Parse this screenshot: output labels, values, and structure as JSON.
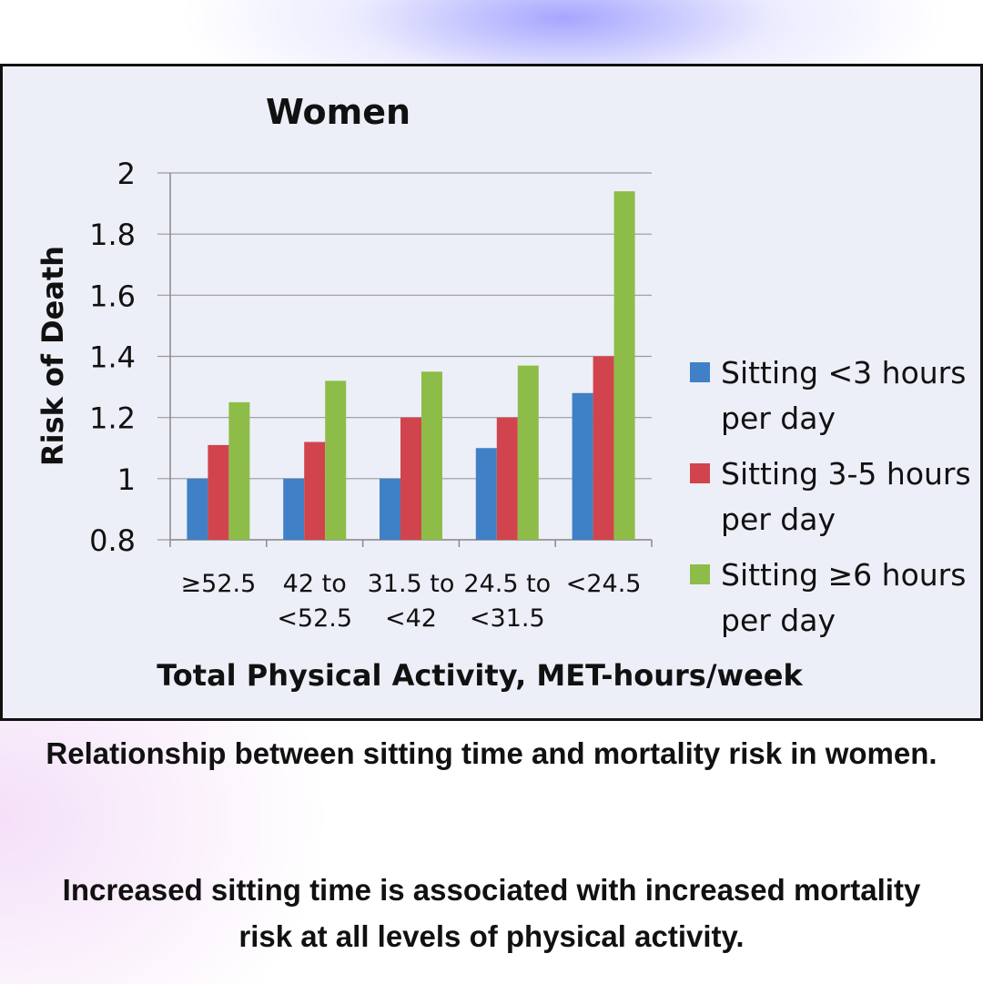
{
  "chart_data": {
    "type": "bar",
    "title": "Women",
    "xlabel": "Total Physical Activity, MET-hours/week",
    "ylabel": "Risk of Death",
    "categories": [
      [
        "≥52.5"
      ],
      [
        "42 to",
        "<52.5"
      ],
      [
        "31.5 to",
        "<42"
      ],
      [
        "24.5 to",
        "<31.5"
      ],
      [
        "<24.5"
      ]
    ],
    "ylim": [
      0.8,
      2
    ],
    "yticks": [
      0.8,
      1,
      1.2,
      1.4,
      1.6,
      1.8,
      2
    ],
    "ytick_labels": [
      "0.8",
      "1",
      "1.2",
      "1.4",
      "1.6",
      "1.8",
      "2"
    ],
    "grid": true,
    "legend_position": "right",
    "series": [
      {
        "name": "Sitting <3 hours per day",
        "color": "#3f80c6",
        "values": [
          1.0,
          1.0,
          1.0,
          1.1,
          1.28
        ]
      },
      {
        "name": "Sitting 3-5 hours per day",
        "color": "#d2444d",
        "values": [
          1.11,
          1.12,
          1.2,
          1.2,
          1.4
        ]
      },
      {
        "name": "Sitting ≥6 hours per day",
        "color": "#8dbd48",
        "values": [
          1.25,
          1.32,
          1.35,
          1.37,
          1.94
        ]
      }
    ]
  },
  "caption": {
    "line1": "Relationship between sitting time and mortality risk in women.",
    "line2": "Increased sitting time is associated with increased mortality risk at all levels of physical activity."
  }
}
